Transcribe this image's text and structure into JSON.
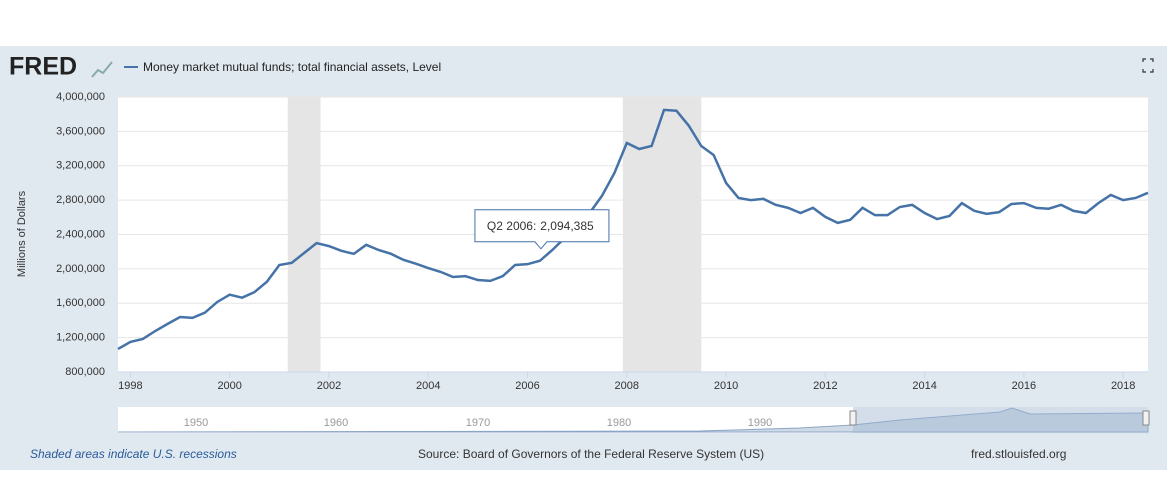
{
  "logo": "FRED",
  "footer": {
    "note": "Shaded areas indicate U.S. recessions",
    "source": "Source: Board of Governors of the Federal Reserve System (US)",
    "site": "fred.stlouisfed.org"
  },
  "navigator": {
    "labels": [
      "1950",
      "1960",
      "1970",
      "1980",
      "1990"
    ]
  },
  "chart_data": {
    "type": "line",
    "ylabel": "Millions of Dollars",
    "x": [
      "Q4 1997",
      "Q1 1998",
      "Q2 1998",
      "Q3 1998",
      "Q4 1998",
      "Q1 1999",
      "Q2 1999",
      "Q3 1999",
      "Q4 1999",
      "Q1 2000",
      "Q2 2000",
      "Q3 2000",
      "Q4 2000",
      "Q1 2001",
      "Q2 2001",
      "Q3 2001",
      "Q4 2001",
      "Q1 2002",
      "Q2 2002",
      "Q3 2002",
      "Q4 2002",
      "Q1 2003",
      "Q2 2003",
      "Q3 2003",
      "Q4 2003",
      "Q1 2004",
      "Q2 2004",
      "Q3 2004",
      "Q4 2004",
      "Q1 2005",
      "Q2 2005",
      "Q3 2005",
      "Q4 2005",
      "Q1 2006",
      "Q2 2006",
      "Q3 2006",
      "Q4 2006",
      "Q1 2007",
      "Q2 2007",
      "Q3 2007",
      "Q4 2007",
      "Q1 2008",
      "Q2 2008",
      "Q3 2008",
      "Q4 2008",
      "Q1 2009",
      "Q2 2009",
      "Q3 2009",
      "Q4 2009",
      "Q1 2010",
      "Q2 2010",
      "Q3 2010",
      "Q4 2010",
      "Q1 2011",
      "Q2 2011",
      "Q3 2011",
      "Q4 2011",
      "Q1 2012",
      "Q2 2012",
      "Q3 2012",
      "Q4 2012",
      "Q1 2013",
      "Q2 2013",
      "Q3 2013",
      "Q4 2013",
      "Q1 2014",
      "Q2 2014",
      "Q3 2014",
      "Q4 2014",
      "Q1 2015",
      "Q2 2015",
      "Q3 2015",
      "Q4 2015",
      "Q1 2016",
      "Q2 2016",
      "Q3 2016",
      "Q4 2016",
      "Q1 2017",
      "Q2 2017",
      "Q3 2017",
      "Q4 2017",
      "Q1 2018",
      "Q2 2018",
      "Q3 2018"
    ],
    "series": [
      {
        "name": "Money market mutual funds; total financial assets, Level",
        "color": "#4572a7",
        "values": [
          1068000,
          1150000,
          1185000,
          1277000,
          1360000,
          1440000,
          1430000,
          1490000,
          1615000,
          1700000,
          1665000,
          1730000,
          1850000,
          2045000,
          2070000,
          2185000,
          2300000,
          2265000,
          2210000,
          2175000,
          2280000,
          2220000,
          2175000,
          2105000,
          2060000,
          2010000,
          1965000,
          1905000,
          1915000,
          1870000,
          1860000,
          1915000,
          2045000,
          2055000,
          2094385,
          2220000,
          2360000,
          2500000,
          2650000,
          2850000,
          3115000,
          3465000,
          3395000,
          3430000,
          3850000,
          3840000,
          3665000,
          3430000,
          3325000,
          3000000,
          2825000,
          2800000,
          2815000,
          2745000,
          2710000,
          2650000,
          2710000,
          2605000,
          2535000,
          2570000,
          2710000,
          2625000,
          2625000,
          2720000,
          2745000,
          2650000,
          2580000,
          2615000,
          2765000,
          2675000,
          2640000,
          2660000,
          2755000,
          2765000,
          2710000,
          2700000,
          2745000,
          2675000,
          2650000,
          2765000,
          2860000,
          2800000,
          2825000,
          2885000
        ]
      }
    ],
    "xlim": [
      1997.75,
      2018.5
    ],
    "xticks": [
      1998,
      2000,
      2002,
      2004,
      2006,
      2008,
      2010,
      2012,
      2014,
      2016,
      2018
    ],
    "ylim": [
      800000,
      4000000
    ],
    "yticks": [
      {
        "value": 800000,
        "label": "800,000"
      },
      {
        "value": 1200000,
        "label": "1,200,000"
      },
      {
        "value": 1600000,
        "label": "1,600,000"
      },
      {
        "value": 2000000,
        "label": "2,000,000"
      },
      {
        "value": 2400000,
        "label": "2,400,000"
      },
      {
        "value": 2800000,
        "label": "2,800,000"
      },
      {
        "value": 3200000,
        "label": "3,200,000"
      },
      {
        "value": 3600000,
        "label": "3,600,000"
      },
      {
        "value": 4000000,
        "label": "4,000,000"
      }
    ],
    "recessions": [
      [
        2001.17,
        2001.83
      ],
      [
        2007.92,
        2009.5
      ]
    ],
    "grid": true,
    "tooltip": {
      "x_label": "Q2 2006:",
      "value": 2094385,
      "value_label": "2,094,385"
    }
  }
}
